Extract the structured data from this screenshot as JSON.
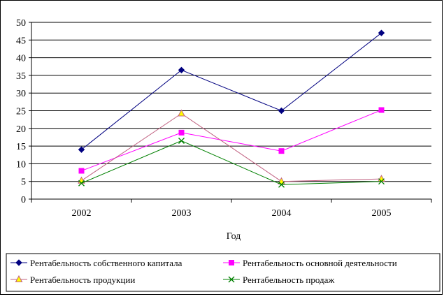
{
  "chart_data": {
    "type": "line",
    "categories": [
      "2002",
      "2003",
      "2004",
      "2005"
    ],
    "xlabel": "Год",
    "ylabel": "",
    "ylim": [
      0,
      50
    ],
    "yticks": [
      "0",
      "5",
      "10",
      "15",
      "20",
      "25",
      "30",
      "35",
      "40",
      "45",
      "50"
    ],
    "grid": "horizontal",
    "legend_position": "bottom",
    "series": [
      {
        "name": "Рентабельность собственного капитала",
        "values": [
          14,
          36.5,
          25,
          47
        ],
        "color": "#000080",
        "marker": "diamond"
      },
      {
        "name": "Рентабельность основной деятельности",
        "values": [
          8,
          18.8,
          13.6,
          25.2
        ],
        "color": "#ff00ff",
        "marker": "square"
      },
      {
        "name": "Рентабельность продукции",
        "values": [
          5.2,
          24.2,
          5,
          5.7
        ],
        "color": "#c06080",
        "marker": "triangle",
        "marker_fill": "#ffff00"
      },
      {
        "name": "Рентабельность продаж",
        "values": [
          4.5,
          16.5,
          4.1,
          5
        ],
        "color": "#008000",
        "marker": "x"
      }
    ]
  }
}
